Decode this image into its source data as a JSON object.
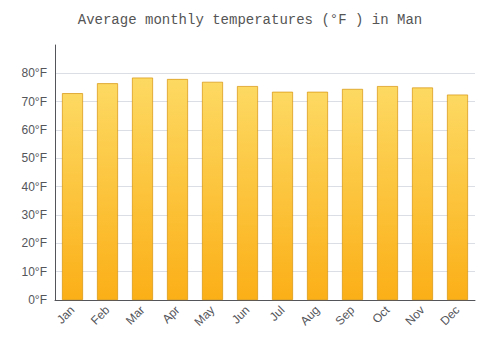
{
  "chart_data": {
    "type": "bar",
    "title": "Average monthly temperatures (°F ) in Man",
    "categories": [
      "Jan",
      "Feb",
      "Mar",
      "Apr",
      "May",
      "Jun",
      "Jul",
      "Aug",
      "Sep",
      "Oct",
      "Nov",
      "Dec"
    ],
    "values": [
      73,
      76.5,
      78.5,
      78,
      77,
      75.5,
      73.5,
      73.5,
      74.5,
      75.5,
      75,
      72.5
    ],
    "color": "#FBAF17",
    "ylim": [
      0,
      90
    ],
    "yticks": [
      {
        "value": 0,
        "label": "0°F"
      },
      {
        "value": 10,
        "label": "10°F"
      },
      {
        "value": 20,
        "label": "20°F"
      },
      {
        "value": 30,
        "label": "30°F"
      },
      {
        "value": 40,
        "label": "40°F"
      },
      {
        "value": 50,
        "label": "50°F"
      },
      {
        "value": 60,
        "label": "60°F"
      },
      {
        "value": 70,
        "label": "70°F"
      },
      {
        "value": 80,
        "label": "80°F"
      }
    ],
    "grid": true
  }
}
